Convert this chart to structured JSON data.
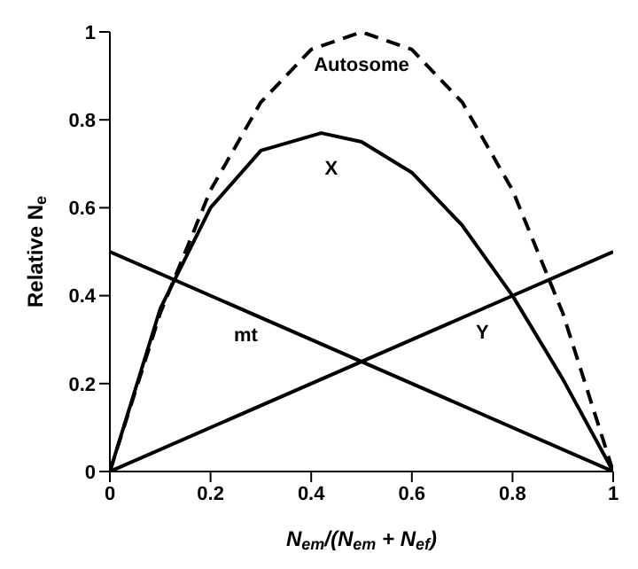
{
  "chart_data": {
    "type": "line",
    "xlabel": "N$_{em}$/(N$_{em}$ + N$_{ef}$)",
    "ylabel": "Relative N$_{e}$",
    "series": [
      {
        "name": "Autosome",
        "color": "#000000",
        "line_style": "dashed",
        "x": [
          0,
          0.1,
          0.2,
          0.3,
          0.4,
          0.5,
          0.6,
          0.7,
          0.8,
          0.9,
          1
        ],
        "values": [
          0,
          0.36,
          0.64,
          0.84,
          0.96,
          1,
          0.96,
          0.84,
          0.64,
          0.36,
          0
        ]
      },
      {
        "name": "X",
        "color": "#000000",
        "x": [
          0,
          0.1,
          0.2,
          0.3,
          0.42,
          0.5,
          0.6,
          0.7,
          0.8,
          0.9,
          1
        ],
        "values": [
          0,
          0.37,
          0.6,
          0.73,
          0.77,
          0.75,
          0.68,
          0.56,
          0.4,
          0.21,
          0
        ]
      },
      {
        "name": "mt",
        "color": "#000000",
        "x": [
          0,
          1
        ],
        "values": [
          0.5,
          0
        ]
      },
      {
        "name": "Y",
        "color": "#000000",
        "x": [
          0,
          1
        ],
        "values": [
          0,
          0.5
        ]
      }
    ],
    "xlim": [
      0,
      1
    ],
    "ylim": [
      0,
      1
    ],
    "xticks": [
      0,
      0.2,
      0.4,
      0.6,
      0.8,
      1
    ],
    "yticks": [
      0,
      0.2,
      0.4,
      0.6,
      0.8,
      1
    ],
    "grid": false,
    "legend": false,
    "marker": "none",
    "line_style": "solid"
  }
}
